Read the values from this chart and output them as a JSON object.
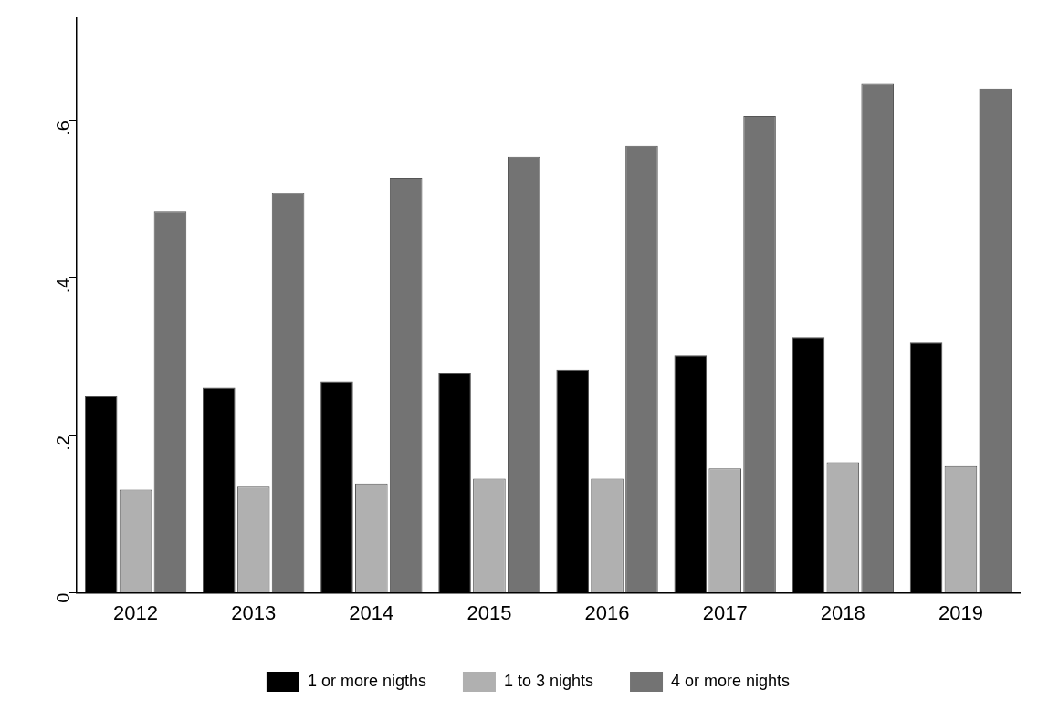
{
  "chart_data": {
    "type": "bar",
    "categories": [
      "2012",
      "2013",
      "2014",
      "2015",
      "2016",
      "2017",
      "2018",
      "2019"
    ],
    "series": [
      {
        "name": "1 or more nigths",
        "color": "#000000",
        "values": [
          0.25,
          0.261,
          0.268,
          0.279,
          0.284,
          0.302,
          0.325,
          0.318
        ]
      },
      {
        "name": "1 to 3 nights",
        "color": "#b0b0b0",
        "values": [
          0.131,
          0.135,
          0.139,
          0.145,
          0.145,
          0.158,
          0.166,
          0.161
        ]
      },
      {
        "name": "4 or more nights",
        "color": "#737373",
        "values": [
          0.485,
          0.508,
          0.527,
          0.554,
          0.568,
          0.606,
          0.647,
          0.641
        ]
      }
    ],
    "ylim": [
      0,
      0.73
    ],
    "yticks": [
      0,
      {
        "value": 0.2,
        "label": ".2"
      },
      {
        "value": 0.4,
        "label": ".4"
      },
      {
        "value": 0.6,
        "label": ".6"
      }
    ],
    "grid": false,
    "legend": "bottom"
  }
}
